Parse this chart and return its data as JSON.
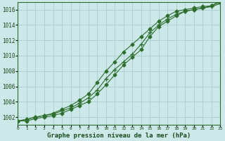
{
  "title": "Graphe pression niveau de la mer (hPa)",
  "background_color": "#cce8e8",
  "grid_color": "#aacccc",
  "line_color": "#2d6e2d",
  "x_values": [
    0,
    1,
    2,
    3,
    4,
    5,
    6,
    7,
    8,
    9,
    10,
    11,
    12,
    13,
    14,
    15,
    16,
    17,
    18,
    19,
    20,
    21,
    22,
    23
  ],
  "series1": [
    1001.5,
    1001.7,
    1002.0,
    1002.2,
    1002.5,
    1003.0,
    1003.5,
    1004.2,
    1005.0,
    1006.5,
    1008.0,
    1009.2,
    1010.5,
    1011.5,
    1012.5,
    1013.5,
    1014.5,
    1015.2,
    1015.8,
    1016.0,
    1016.2,
    1016.4,
    1016.5,
    1017.2
  ],
  "series2": [
    1001.5,
    1001.7,
    1002.0,
    1002.2,
    1002.4,
    1002.8,
    1003.2,
    1003.8,
    1004.5,
    1005.5,
    1007.0,
    1008.2,
    1009.2,
    1010.2,
    1011.5,
    1013.0,
    1014.0,
    1014.8,
    1015.4,
    1015.8,
    1016.0,
    1016.2,
    1016.4,
    1016.8
  ],
  "series3": [
    1001.5,
    1001.5,
    1001.8,
    1002.0,
    1002.2,
    1002.5,
    1003.0,
    1003.5,
    1004.0,
    1005.0,
    1006.2,
    1007.5,
    1008.8,
    1009.8,
    1010.8,
    1012.5,
    1013.8,
    1014.5,
    1015.2,
    1015.8,
    1016.0,
    1016.2,
    1016.5,
    1017.0
  ],
  "ylim": [
    1001.0,
    1017.0
  ],
  "yticks": [
    1002,
    1004,
    1006,
    1008,
    1010,
    1012,
    1014,
    1016
  ],
  "xlim": [
    0,
    23
  ],
  "xticks": [
    0,
    1,
    2,
    3,
    4,
    5,
    6,
    7,
    8,
    9,
    10,
    11,
    12,
    13,
    14,
    15,
    16,
    17,
    18,
    19,
    20,
    21,
    22,
    23
  ]
}
